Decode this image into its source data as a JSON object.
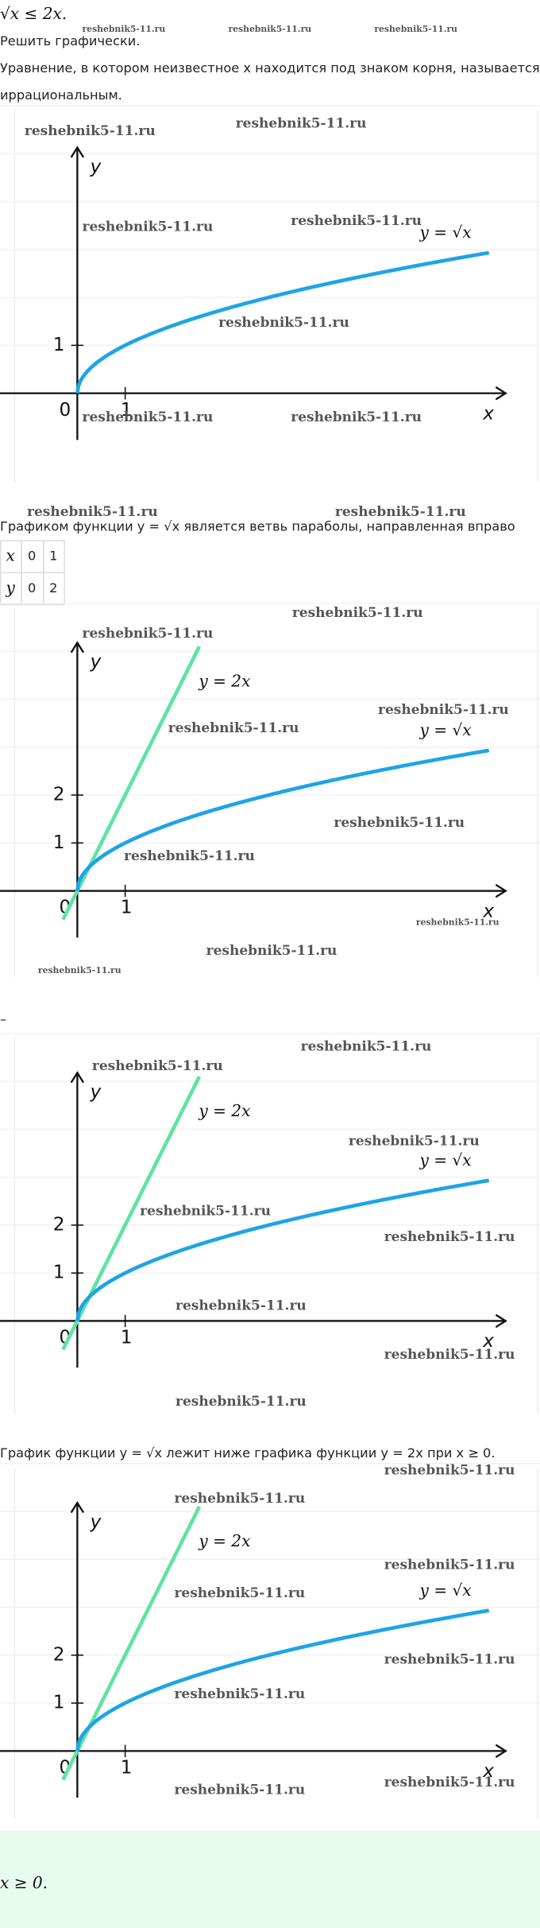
{
  "task": "√x ≤ 2x.",
  "instruction": "Решить графически.",
  "intro": {
    "lines": [
      "Уравнение, в котором неизвестное x находится под знаком корня, называется",
      "иррациональным."
    ]
  },
  "header_watermarks": [
    "reshebnik5-11.ru",
    "reshebnik5-11.ru",
    "reshebnik5-11.ru"
  ],
  "graphs": [
    {
      "y_axis": "y",
      "x_axis": "x",
      "origin": "0",
      "x_tick": "1",
      "y_ticks": [
        "1"
      ],
      "labels": [
        "y = √x"
      ],
      "watermarks": [
        "reshebnik5-11.ru",
        "reshebnik5-11.ru",
        "reshebnik5-11.ru",
        "reshebnik5-11.ru",
        "reshebnik5-11.ru",
        "reshebnik5-11.ru",
        "reshebnik5-11.ru"
      ]
    },
    {
      "y_axis": "y",
      "x_axis": "x",
      "origin": "0",
      "x_tick": "1",
      "y_ticks": [
        "1",
        "2"
      ],
      "labels": [
        "y = √x",
        "y = 2x"
      ],
      "watermarks": [
        "reshebnik5-11.ru",
        "reshebnik5-11.ru",
        "reshebnik5-11.ru",
        "reshebnik5-11.ru",
        "reshebnik5-11.ru",
        "reshebnik5-11.ru",
        "reshebnik5-11.ru",
        "reshebnik5-11.ru",
        "reshebnik5-11.ru"
      ]
    },
    {
      "y_axis": "y",
      "x_axis": "x",
      "origin": "0",
      "x_tick": "1",
      "y_ticks": [
        "1",
        "2"
      ],
      "labels": [
        "y = √x",
        "y = 2x"
      ],
      "watermarks": [
        "reshebnik5-11.ru",
        "reshebnik5-11.ru",
        "reshebnik5-11.ru",
        "reshebnik5-11.ru",
        "reshebnik5-11.ru",
        "reshebnik5-11.ru",
        "reshebnik5-11.ru",
        "reshebnik5-11.ru"
      ]
    },
    {
      "y_axis": "y",
      "x_axis": "x",
      "origin": "0",
      "x_tick": "1",
      "y_ticks": [
        "1",
        "2"
      ],
      "labels": [
        "y = √x",
        "y = 2x"
      ],
      "watermarks": [
        "reshebnik5-11.ru",
        "reshebnik5-11.ru",
        "reshebnik5-11.ru",
        "reshebnik5-11.ru",
        "reshebnik5-11.ru",
        "reshebnik5-11.ru",
        "reshebnik5-11.ru"
      ]
    }
  ],
  "section2": {
    "watermarks": [
      "reshebnik5-11.ru",
      "reshebnik5-11.ru"
    ],
    "text": "Графиком функции y = √x является ветвь параболы, направленная вправо"
  },
  "table": {
    "rows": [
      [
        "x",
        "0",
        "1"
      ],
      [
        "y",
        "0",
        "2"
      ]
    ]
  },
  "dash": "–",
  "section3": {
    "text": "График функции y = √x лежит ниже графика функции y = 2x при x ≥ 0.",
    "watermark": "reshebnik5-11.ru"
  },
  "answer": "x ≥ 0."
}
